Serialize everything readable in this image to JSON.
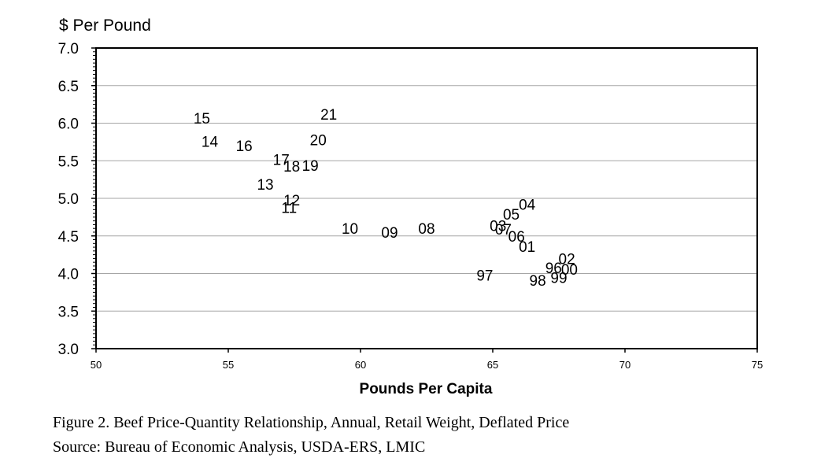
{
  "chart_data": {
    "type": "scatter",
    "ylabel": "$ Per Pound",
    "xlabel": "Pounds Per Capita",
    "xlim": [
      50,
      75
    ],
    "ylim": [
      3.0,
      7.0
    ],
    "xticks": [
      "50",
      "55",
      "60",
      "65",
      "70",
      "75"
    ],
    "yticks": [
      "3.0",
      "3.5",
      "4.0",
      "4.5",
      "5.0",
      "5.5",
      "6.0",
      "6.5",
      "7.0"
    ],
    "grid": true,
    "points": [
      {
        "label": "96",
        "x": 67.3,
        "y": 4.08
      },
      {
        "label": "97",
        "x": 64.7,
        "y": 3.98
      },
      {
        "label": "98",
        "x": 66.7,
        "y": 3.91
      },
      {
        "label": "99",
        "x": 67.5,
        "y": 3.95
      },
      {
        "label": "00",
        "x": 67.9,
        "y": 4.06
      },
      {
        "label": "01",
        "x": 66.3,
        "y": 4.36
      },
      {
        "label": "02",
        "x": 67.8,
        "y": 4.2
      },
      {
        "label": "03",
        "x": 65.2,
        "y": 4.64
      },
      {
        "label": "04",
        "x": 66.3,
        "y": 4.92
      },
      {
        "label": "05",
        "x": 65.7,
        "y": 4.79
      },
      {
        "label": "06",
        "x": 65.9,
        "y": 4.5
      },
      {
        "label": "07",
        "x": 65.4,
        "y": 4.59
      },
      {
        "label": "08",
        "x": 62.5,
        "y": 4.6
      },
      {
        "label": "09",
        "x": 61.1,
        "y": 4.55
      },
      {
        "label": "10",
        "x": 59.6,
        "y": 4.6
      },
      {
        "label": "11",
        "x": 57.3,
        "y": 4.88
      },
      {
        "label": "12",
        "x": 57.4,
        "y": 4.98
      },
      {
        "label": "13",
        "x": 56.4,
        "y": 5.19
      },
      {
        "label": "14",
        "x": 54.3,
        "y": 5.76
      },
      {
        "label": "15",
        "x": 54.0,
        "y": 6.07
      },
      {
        "label": "16",
        "x": 55.6,
        "y": 5.7
      },
      {
        "label": "17",
        "x": 57.0,
        "y": 5.52
      },
      {
        "label": "18",
        "x": 57.4,
        "y": 5.43
      },
      {
        "label": "19",
        "x": 58.1,
        "y": 5.44
      },
      {
        "label": "20",
        "x": 58.4,
        "y": 5.78
      },
      {
        "label": "21",
        "x": 58.8,
        "y": 6.12
      }
    ]
  },
  "caption": {
    "line1": "Figure 2. Beef Price-Quantity Relationship, Annual, Retail Weight, Deflated Price",
    "line2": "Source: Bureau of Economic Analysis, USDA-ERS, LMIC"
  }
}
